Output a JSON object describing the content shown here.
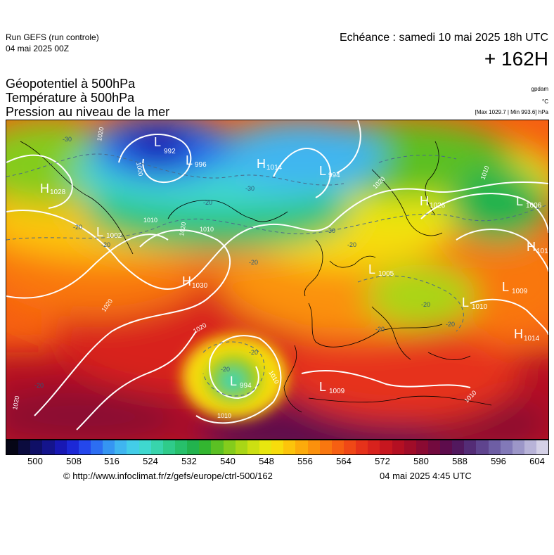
{
  "header": {
    "run_title": "Run GEFS (run controle)",
    "run_date": "04 mai 2025 00Z",
    "forecast_label": "Echéance : samedi 10 mai 2025 18h UTC",
    "forecast_hours": "+ 162H"
  },
  "fields": {
    "line1": "Géopotentiel à 500hPa",
    "line2": "Température à 500hPa",
    "line3": "Pression au niveau de la mer"
  },
  "units": {
    "geopotential": "gpdam",
    "temperature": "°C",
    "pressure_range": "[Max 1029.7 | Min 993.6] hPa"
  },
  "colorbar": {
    "colors": [
      "#060616",
      "#0b0b3e",
      "#0f0f66",
      "#14148c",
      "#1818b4",
      "#1c28d6",
      "#2447ec",
      "#2c6ef2",
      "#3595f2",
      "#3fb5f0",
      "#43cde8",
      "#3fd8cf",
      "#38d4ac",
      "#2fcb8a",
      "#27c06b",
      "#22b34e",
      "#33b630",
      "#5bc023",
      "#84cc1c",
      "#a9d616",
      "#ccdf12",
      "#e8e60f",
      "#f7dc0c",
      "#fcc40b",
      "#fcab0b",
      "#fb910c",
      "#f9770f",
      "#f65f12",
      "#f04816",
      "#e6321a",
      "#d8221d",
      "#c7161f",
      "#b40f22",
      "#a00c28",
      "#8a0a32",
      "#730a3e",
      "#5e0c4c",
      "#52185e",
      "#542c76",
      "#5f448e",
      "#6e5ea4",
      "#8279b8",
      "#9c96c8",
      "#b8b3d8",
      "#d4d0e6"
    ],
    "tick_labels": [
      "500",
      "508",
      "516",
      "524",
      "532",
      "540",
      "548",
      "556",
      "564",
      "572",
      "580",
      "588",
      "596",
      "604"
    ]
  },
  "map": {
    "pressure_centers": [
      {
        "type": "L",
        "value": "992"
      },
      {
        "type": "L",
        "value": "996"
      },
      {
        "type": "H",
        "value": "1014"
      },
      {
        "type": "L",
        "value": "994"
      },
      {
        "type": "H",
        "value": "1028"
      },
      {
        "type": "L",
        "value": "1002"
      },
      {
        "type": "H",
        "value": "1030"
      },
      {
        "type": "H",
        "value": "1026"
      },
      {
        "type": "L",
        "value": "1006"
      },
      {
        "type": "H",
        "value": "101"
      },
      {
        "type": "L",
        "value": "1009"
      },
      {
        "type": "L",
        "value": "1010"
      },
      {
        "type": "H",
        "value": "1014"
      },
      {
        "type": "L",
        "value": "994"
      },
      {
        "type": "L",
        "value": "1009"
      },
      {
        "type": "L",
        "value": "1005"
      }
    ],
    "isobar_labels": [
      "1020",
      "1010",
      "1010",
      "1020",
      "1010",
      "1020",
      "1020",
      "1010",
      "1020",
      "1010",
      "1010",
      "1020",
      "1000"
    ],
    "temperature_labels": [
      "-30",
      "-30",
      "-20",
      "-20",
      "-20",
      "-20",
      "-20",
      "-20",
      "-20",
      "-20",
      "-30",
      "-20",
      "-20",
      "-20"
    ]
  },
  "footer": {
    "source_url": "© http://www.infoclimat.fr/z/gefs/europe/ctrl-500/162",
    "generated_at": "04 mai 2025  4:45 UTC"
  }
}
